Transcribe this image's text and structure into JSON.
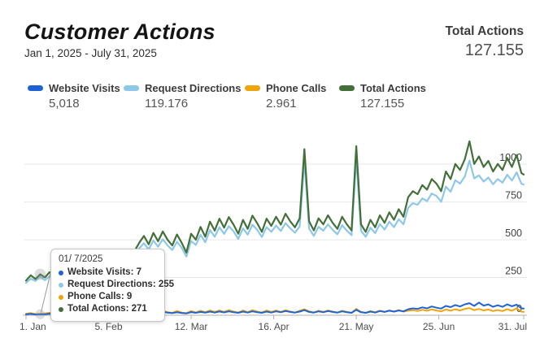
{
  "header": {
    "title": "Customer Actions",
    "date_range": "Jan 1, 2025 - July 31, 2025",
    "total_label": "Total Actions",
    "total_value": "127.155"
  },
  "legend": {
    "items": [
      {
        "label": "Website Visits",
        "value": "5,018",
        "color": "#1f62d5"
      },
      {
        "label": "Request Directions",
        "value": "119.176",
        "color": "#8dc8e8"
      },
      {
        "label": "Phone Calls",
        "value": "2.961",
        "color": "#f0a30a"
      },
      {
        "label": "Total Actions",
        "value": "127.155",
        "color": "#436f39"
      }
    ]
  },
  "tooltip": {
    "date": "01/ 7/2025",
    "anchor_day": 6,
    "rows": [
      {
        "label": "Website Visits",
        "value": "7",
        "color": "#1f62d5"
      },
      {
        "label": "Request Directions",
        "value": "255",
        "color": "#8dc8e8"
      },
      {
        "label": "Phone Calls",
        "value": "9",
        "color": "#f0a30a"
      },
      {
        "label": "Total Actions",
        "value": "271",
        "color": "#436f39"
      }
    ]
  },
  "chart_data": {
    "type": "line",
    "title": "Customer Actions",
    "xlabel": "",
    "ylabel": "",
    "x_unit": "days since Jan 1, 2025",
    "grid": "horizontal",
    "legend_position": "top",
    "ylim": [
      0,
      1270
    ],
    "y_ticks": [
      0,
      250,
      500,
      750,
      1000
    ],
    "x_ticks": [
      {
        "day": 0,
        "label": "1. Jan"
      },
      {
        "day": 35,
        "label": "5. Feb"
      },
      {
        "day": 70,
        "label": "12. Mar"
      },
      {
        "day": 105,
        "label": "16. Apr"
      },
      {
        "day": 140,
        "label": "21. May"
      },
      {
        "day": 175,
        "label": "25. Jun"
      },
      {
        "day": 211,
        "label": "31. Jul"
      }
    ],
    "x": [
      0,
      2,
      4,
      6,
      8,
      10,
      12,
      14,
      16,
      18,
      20,
      22,
      24,
      26,
      28,
      30,
      32,
      34,
      36,
      38,
      40,
      42,
      44,
      46,
      48,
      50,
      52,
      54,
      56,
      58,
      60,
      62,
      64,
      66,
      68,
      70,
      72,
      74,
      76,
      78,
      80,
      82,
      84,
      86,
      88,
      90,
      92,
      94,
      96,
      98,
      100,
      102,
      104,
      106,
      108,
      110,
      112,
      114,
      116,
      118,
      120,
      122,
      124,
      126,
      128,
      130,
      132,
      134,
      136,
      138,
      140,
      142,
      144,
      146,
      148,
      150,
      152,
      154,
      156,
      158,
      160,
      162,
      164,
      166,
      168,
      170,
      172,
      174,
      176,
      178,
      180,
      182,
      184,
      186,
      188,
      190,
      192,
      194,
      196,
      198,
      200,
      202,
      204,
      206,
      208,
      210,
      211
    ],
    "series": [
      {
        "name": "Request Directions",
        "color": "#8dc8e8",
        "width": 2.2,
        "values": [
          214,
          242,
          227,
          255,
          232,
          259,
          243,
          266,
          250,
          273,
          258,
          281,
          266,
          289,
          274,
          297,
          282,
          305,
          299,
          322,
          318,
          341,
          367,
          380,
          444,
          477,
          437,
          494,
          454,
          503,
          463,
          432,
          487,
          447,
          389,
          491,
          466,
          533,
          483,
          564,
          520,
          583,
          539,
          590,
          556,
          506,
          576,
          534,
          600,
          566,
          518,
          584,
          552,
          594,
          558,
          610,
          576,
          546,
          588,
          1026,
          574,
          526,
          586,
          560,
          602,
          566,
          536,
          596,
          560,
          530,
          1042,
          560,
          520,
          580,
          544,
          604,
          568,
          620,
          584,
          636,
          602,
          712,
          742,
          732,
          774,
          756,
          806,
          790,
          752,
          852,
          818,
          894,
          872,
          918,
          1024,
          906,
          926,
          886,
          912,
          868,
          902,
          878,
          930,
          892,
          946,
          872,
          866
        ]
      },
      {
        "name": "Total Actions",
        "color": "#436f39",
        "width": 2.2,
        "values": [
          230,
          265,
          240,
          271,
          250,
          285,
          260,
          295,
          270,
          305,
          280,
          315,
          290,
          325,
          300,
          335,
          310,
          345,
          330,
          365,
          350,
          385,
          400,
          425,
          480,
          525,
          470,
          545,
          490,
          555,
          500,
          462,
          535,
          480,
          415,
          540,
          500,
          585,
          520,
          620,
          560,
          640,
          580,
          650,
          600,
          540,
          632,
          572,
          660,
          610,
          552,
          640,
          592,
          652,
          600,
          672,
          622,
          582,
          642,
          1100,
          622,
          562,
          642,
          602,
          662,
          612,
          572,
          652,
          602,
          562,
          1120,
          602,
          552,
          632,
          582,
          662,
          612,
          682,
          632,
          702,
          652,
          782,
          822,
          802,
          862,
          832,
          902,
          872,
          822,
          952,
          902,
          1002,
          962,
          1032,
          1152,
          1002,
          1052,
          982,
          1022,
          952,
          1002,
          962,
          1042,
          982,
          1062,
          942,
          932
        ]
      },
      {
        "name": "Phone Calls",
        "color": "#f0a30a",
        "width": 2,
        "values": [
          10,
          14,
          8,
          9,
          12,
          16,
          10,
          18,
          12,
          20,
          13,
          21,
          14,
          22,
          15,
          23,
          16,
          24,
          18,
          26,
          18,
          26,
          18,
          26,
          20,
          28,
          18,
          30,
          20,
          30,
          20,
          16,
          28,
          18,
          14,
          28,
          18,
          30,
          20,
          32,
          22,
          32,
          22,
          34,
          24,
          18,
          32,
          20,
          34,
          24,
          18,
          32,
          22,
          32,
          22,
          34,
          24,
          18,
          30,
          40,
          26,
          18,
          30,
          22,
          32,
          24,
          18,
          30,
          22,
          16,
          42,
          22,
          16,
          28,
          20,
          30,
          22,
          32,
          24,
          34,
          24,
          30,
          34,
          28,
          36,
          30,
          38,
          32,
          26,
          38,
          30,
          40,
          32,
          42,
          48,
          34,
          42,
          32,
          38,
          28,
          34,
          28,
          40,
          30,
          46,
          24,
          22
        ]
      },
      {
        "name": "Website Visits",
        "color": "#1f62d5",
        "width": 2,
        "values": [
          6,
          9,
          5,
          7,
          6,
          10,
          7,
          11,
          8,
          12,
          9,
          13,
          10,
          14,
          11,
          15,
          12,
          16,
          13,
          17,
          14,
          18,
          15,
          19,
          16,
          20,
          15,
          21,
          16,
          22,
          17,
          14,
          20,
          15,
          12,
          21,
          16,
          22,
          17,
          24,
          18,
          25,
          19,
          26,
          20,
          16,
          24,
          18,
          26,
          20,
          16,
          24,
          18,
          26,
          20,
          28,
          22,
          18,
          24,
          34,
          22,
          18,
          26,
          20,
          28,
          22,
          18,
          26,
          20,
          16,
          36,
          20,
          16,
          24,
          18,
          28,
          22,
          30,
          24,
          32,
          26,
          40,
          46,
          42,
          52,
          46,
          58,
          50,
          44,
          62,
          54,
          68,
          58,
          72,
          80,
          62,
          84,
          64,
          72,
          56,
          66,
          56,
          72,
          60,
          70,
          46,
          44
        ]
      }
    ]
  }
}
